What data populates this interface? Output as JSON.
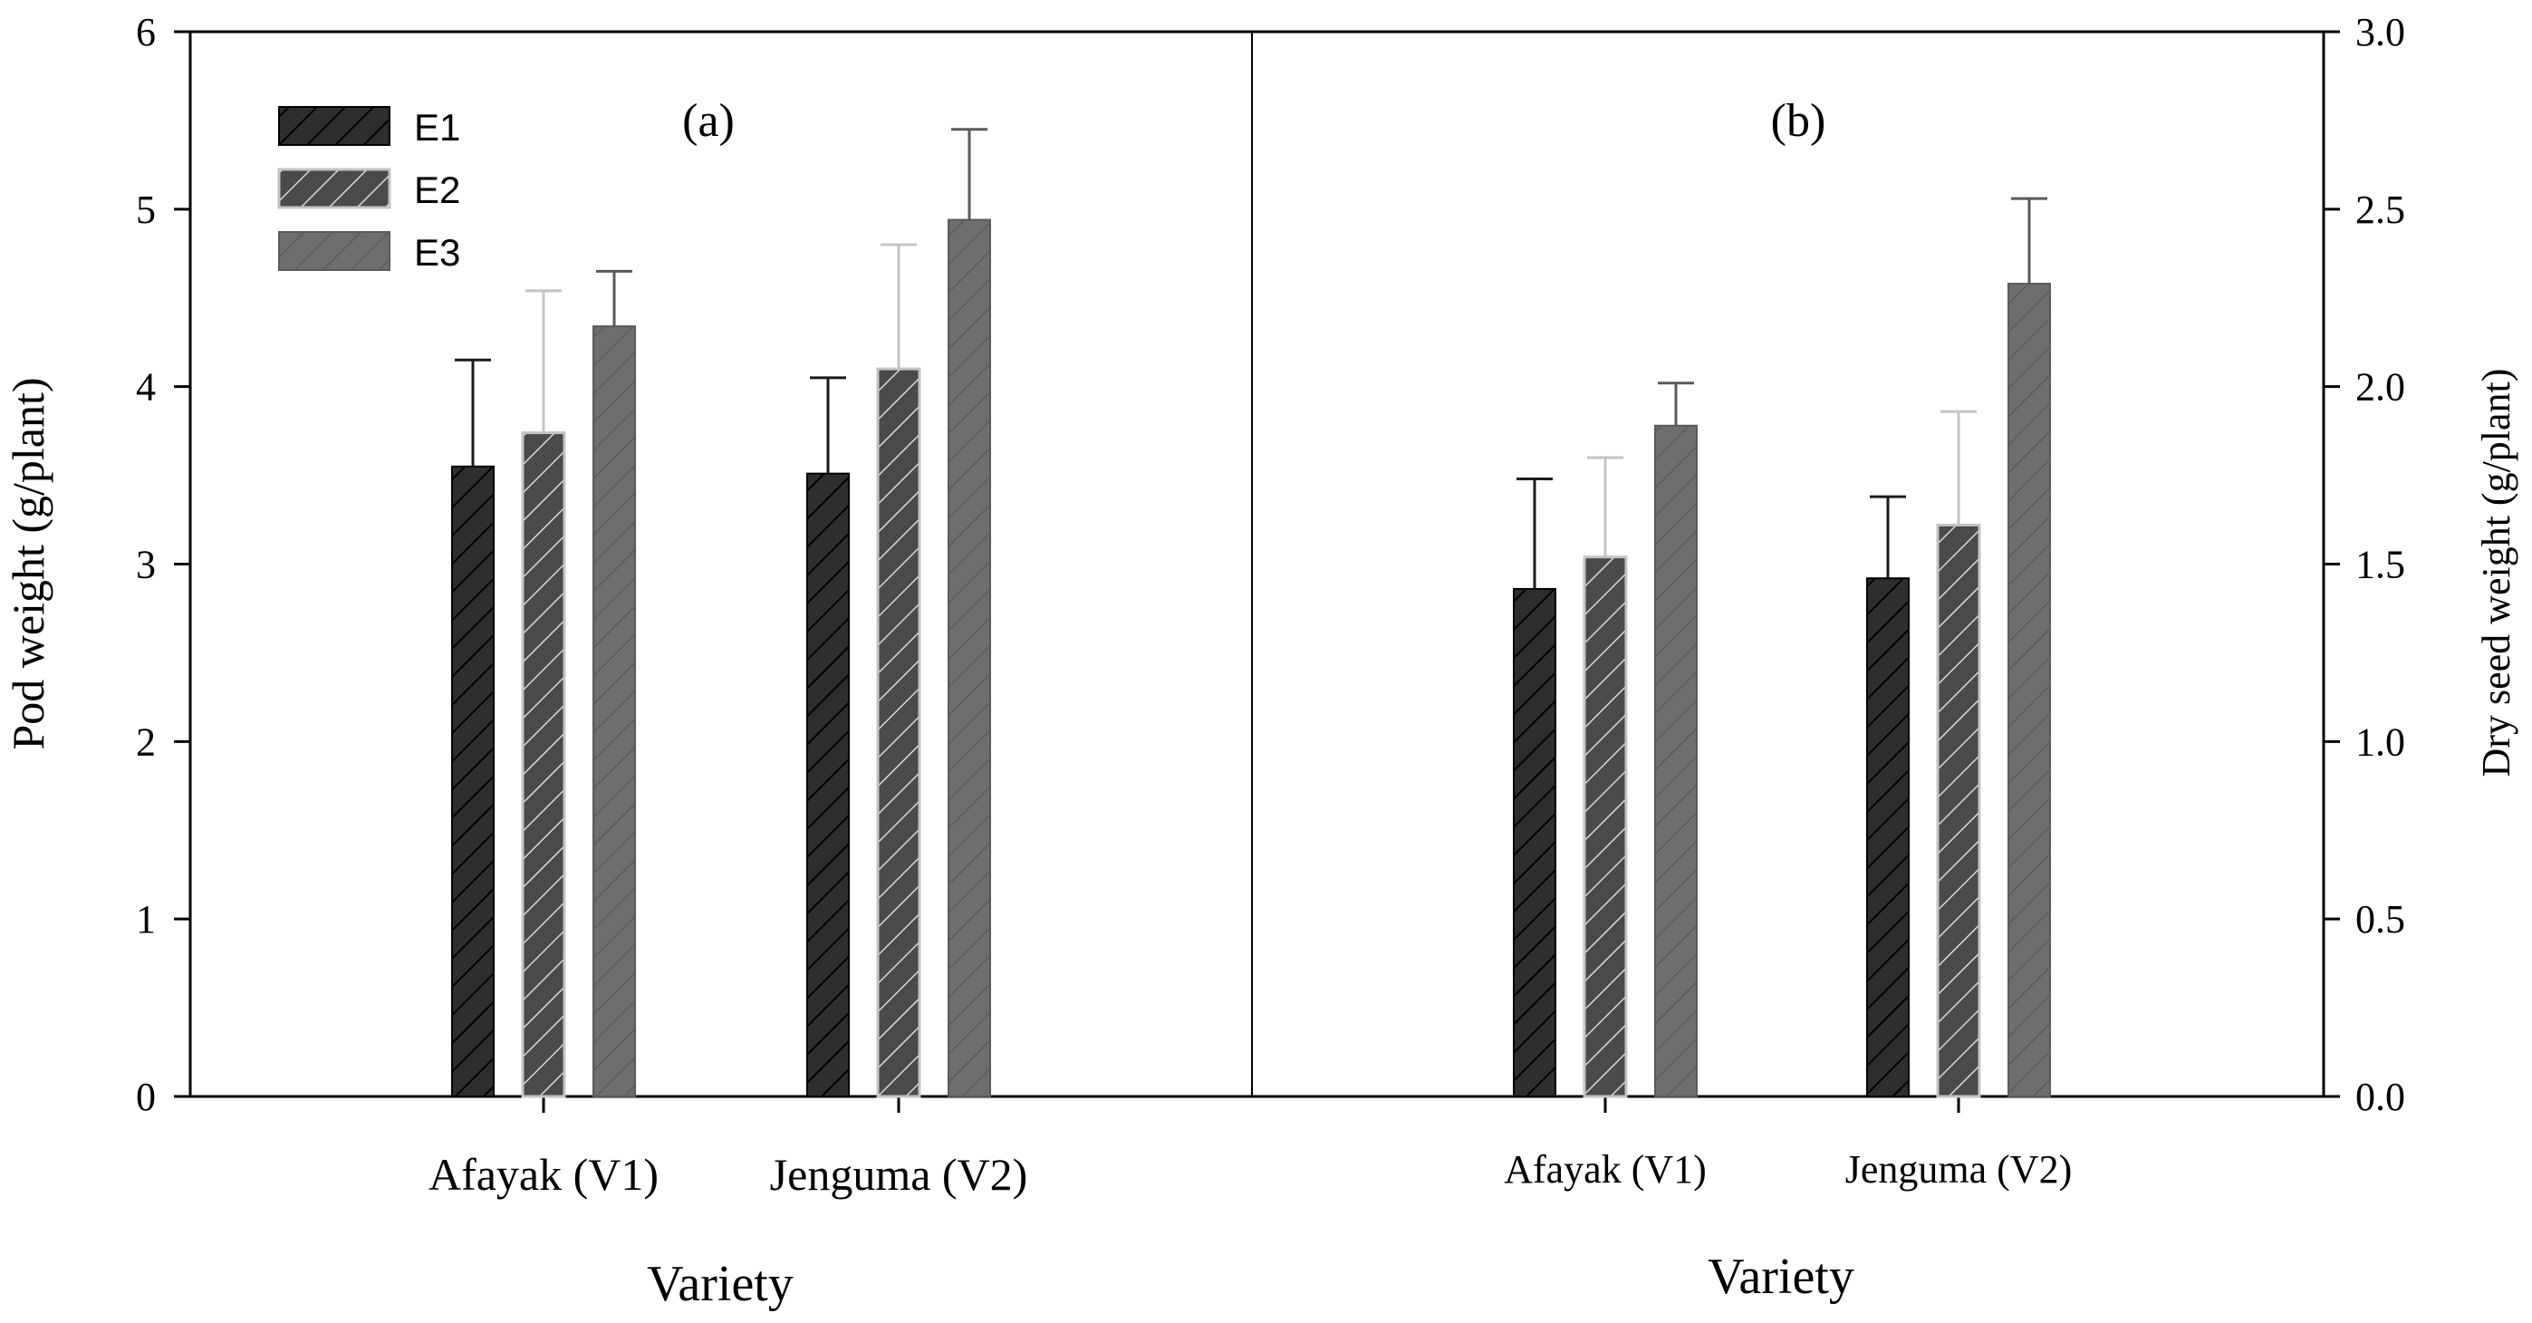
{
  "chart_data": [
    {
      "panel": "(a)",
      "type": "bar",
      "title": "(a)",
      "xlabel": "Variety",
      "ylabel": "Pod weight (g/plant)",
      "ylim": [
        0,
        6
      ],
      "yticks": [
        "0",
        "1",
        "2",
        "3",
        "4",
        "5",
        "6"
      ],
      "categories": [
        "Afayak (V1)",
        "Jenguma (V2)"
      ],
      "series": [
        {
          "name": "E1",
          "values": [
            3.55,
            3.51
          ],
          "errors": [
            0.6,
            0.54
          ]
        },
        {
          "name": "E2",
          "values": [
            3.74,
            4.1
          ],
          "errors": [
            0.8,
            0.7
          ]
        },
        {
          "name": "E3",
          "values": [
            4.34,
            4.94
          ],
          "errors": [
            0.31,
            0.51
          ]
        }
      ],
      "legend": {
        "placement": "top-left",
        "entries": [
          "E1",
          "E2",
          "E3"
        ]
      }
    },
    {
      "panel": "(b)",
      "type": "bar",
      "title": "(b)",
      "xlabel": "Variety",
      "ylabel": "Dry seed weight (g/plant)",
      "ylim": [
        0,
        3
      ],
      "yticks": [
        "0.0",
        "0.5",
        "1.0",
        "1.5",
        "2.0",
        "2.5",
        "3.0"
      ],
      "categories": [
        "Afayak (V1)",
        "Jenguma (V2)"
      ],
      "series": [
        {
          "name": "E1",
          "values": [
            1.43,
            1.46
          ],
          "errors": [
            0.31,
            0.23
          ]
        },
        {
          "name": "E2",
          "values": [
            1.52,
            1.61
          ],
          "errors": [
            0.28,
            0.32
          ]
        },
        {
          "name": "E3",
          "values": [
            1.89,
            2.29
          ],
          "errors": [
            0.12,
            0.24
          ]
        }
      ]
    }
  ],
  "style": {
    "e1_fill": "#2e2e2e",
    "e2_fill": "#4a4a4a",
    "e3_fill": "#6e6e6e",
    "e1_error": "#1a1a1a",
    "e2_error": "#c4c4c4",
    "e3_error": "#5a5a5a",
    "hatch_dark": "#000000",
    "hatch_light": "#d8d8d8",
    "axis": "#000000"
  }
}
